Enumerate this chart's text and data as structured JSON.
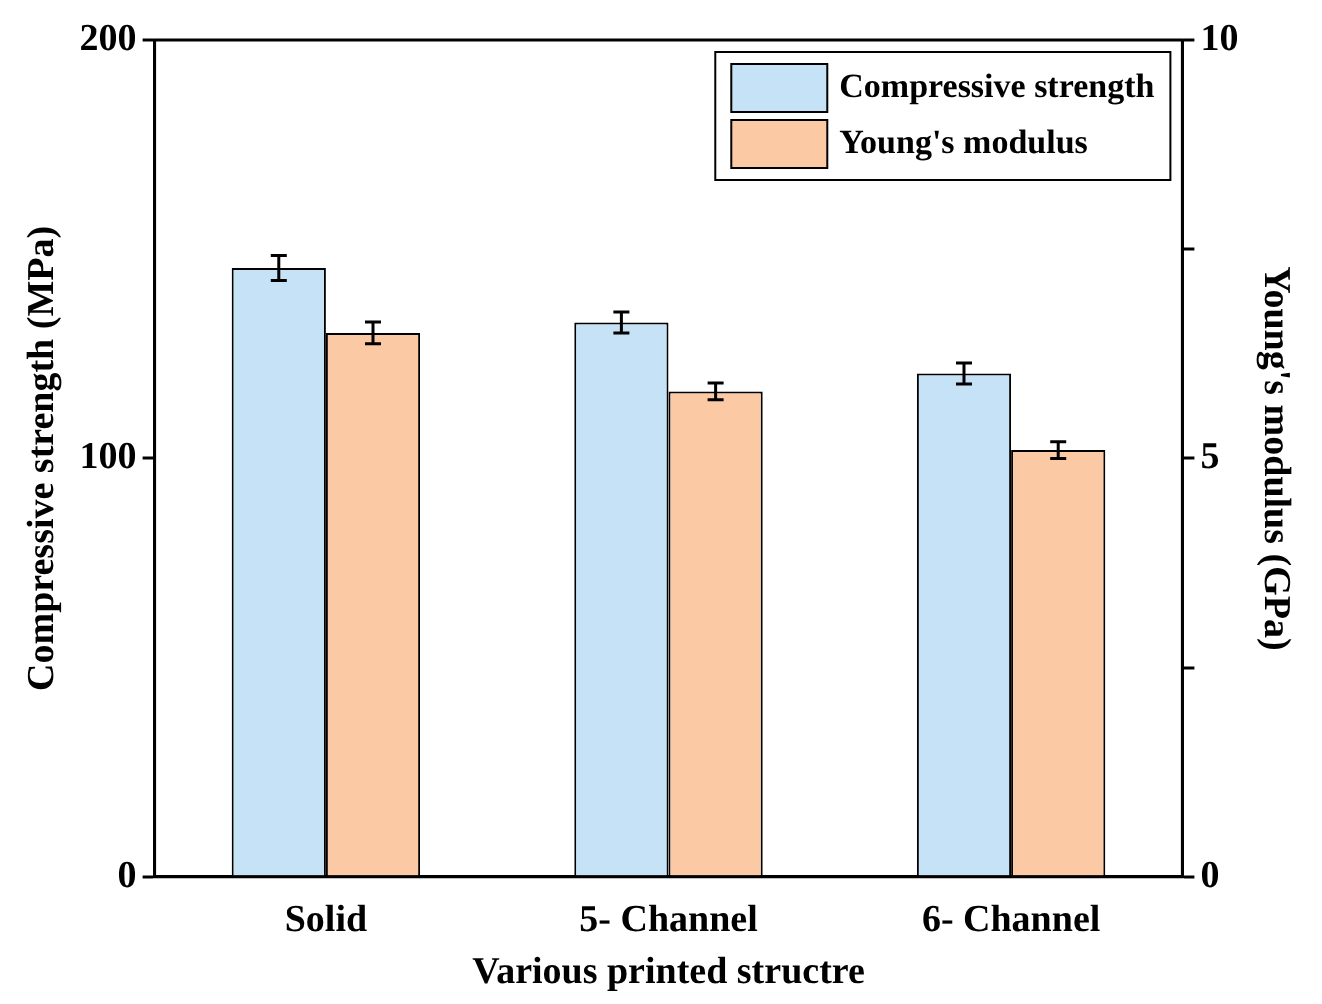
{
  "chart_data": {
    "type": "bar",
    "xlabel": "Various printed structre",
    "ylabel": "Compressive strength (MPa)",
    "y2label": "Young's modulus (GPa)",
    "categories": [
      "Solid",
      "5- Channel",
      "6- Channel"
    ],
    "series": [
      {
        "name": "Compressive strength",
        "color": "#c6e2f7",
        "values": [
          145.5,
          132.5,
          120.3
        ],
        "errors": [
          3,
          2.5,
          2.5
        ]
      },
      {
        "name": "Young's modulus",
        "color": "#fcc9a5",
        "values": [
          6.5,
          5.8,
          5.1
        ],
        "errors": [
          0.13,
          0.1,
          0.1
        ],
        "axis": "y2"
      }
    ],
    "ylim": [
      0,
      200
    ],
    "yticks": [
      0,
      100,
      200
    ],
    "y2lim": [
      0,
      10
    ],
    "y2ticks": [
      0,
      {
        "value": 2.5,
        "label": null
      },
      5,
      {
        "value": 7.5,
        "label": null
      },
      10
    ],
    "legend": "top right",
    "grid": false
  }
}
